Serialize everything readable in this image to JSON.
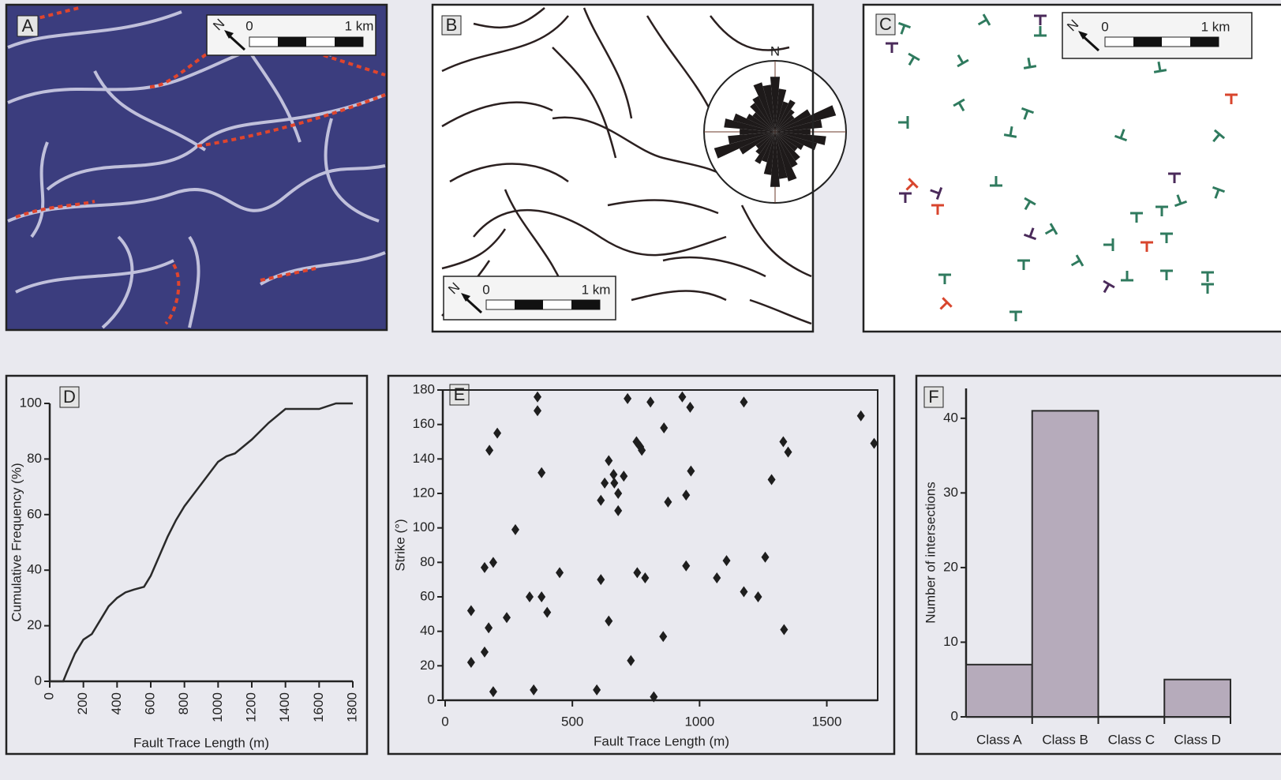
{
  "maps": [
    {
      "label": "A",
      "scale_start": "0",
      "scale_end": "1 km",
      "north": "N"
    },
    {
      "label": "B",
      "scale_start": "0",
      "scale_end": "1 km",
      "north": "N",
      "rose_north": "N"
    },
    {
      "label": "C",
      "scale_start": "0",
      "scale_end": "1 km",
      "north": "N"
    }
  ],
  "chart_data": [
    {
      "type": "line",
      "label": "D",
      "xlabel": "Fault Trace Length (m)",
      "ylabel": "Cumulative Frequency (%)",
      "color": "#2a2a2a",
      "x": [
        0,
        80,
        100,
        150,
        200,
        250,
        300,
        350,
        400,
        450,
        500,
        560,
        600,
        650,
        700,
        750,
        800,
        900,
        1000,
        1050,
        1100,
        1200,
        1300,
        1400,
        1500,
        1600,
        1700,
        1800
      ],
      "values": [
        0,
        0,
        3,
        10,
        15,
        17,
        22,
        27,
        30,
        32,
        33,
        34,
        38,
        45,
        52,
        58,
        63,
        71,
        79,
        81,
        82,
        87,
        93,
        98,
        98,
        98,
        100,
        100
      ],
      "xlim": [
        0,
        1800
      ],
      "ylim": [
        0,
        100
      ],
      "xticks": [
        0,
        200,
        400,
        600,
        800,
        1000,
        1200,
        1400,
        1600,
        1800
      ],
      "yticks": [
        0,
        20,
        40,
        60,
        80,
        100
      ]
    },
    {
      "type": "scatter",
      "label": "E",
      "xlabel": "Fault Trace Length (m)",
      "ylabel": "Strike (°)",
      "color": "#1e1e1e",
      "x": [
        102,
        102,
        155,
        189,
        171,
        155,
        189,
        174,
        205,
        242,
        276,
        332,
        348,
        363,
        363,
        379,
        379,
        401,
        450,
        596,
        612,
        612,
        627,
        643,
        643,
        662,
        665,
        680,
        680,
        702,
        717,
        730,
        752,
        755,
        767,
        773,
        786,
        807,
        820,
        857,
        860,
        876,
        932,
        947,
        947,
        963,
        966,
        1068,
        1106,
        1174,
        1174,
        1230,
        1258,
        1283,
        1329,
        1348,
        1332,
        1634,
        1686
      ],
      "values": [
        22,
        52,
        77,
        80,
        42,
        28,
        5,
        145,
        155,
        48,
        99,
        60,
        6,
        176,
        168,
        132,
        60,
        51,
        74,
        6,
        116,
        70,
        126,
        139,
        46,
        131,
        126,
        120,
        110,
        130,
        175,
        23,
        150,
        74,
        147,
        145,
        71,
        173,
        2,
        37,
        158,
        115,
        176,
        119,
        78,
        170,
        133,
        71,
        81,
        173,
        63,
        60,
        83,
        128,
        150,
        144,
        41,
        165,
        149
      ],
      "xlim": [
        0,
        1700
      ],
      "ylim": [
        0,
        180
      ],
      "xticks": [
        0,
        500,
        1000,
        1500
      ],
      "yticks": [
        0,
        20,
        40,
        60,
        80,
        100,
        120,
        140,
        160,
        180
      ]
    },
    {
      "type": "bar",
      "label": "F",
      "ylabel": "Number of intersections",
      "color": "#b6abbb",
      "categories": [
        "Class A",
        "Class B",
        "Class C",
        "Class D"
      ],
      "values": [
        7,
        41,
        0,
        5
      ],
      "ylim": [
        0,
        44
      ],
      "yticks": [
        0,
        10,
        20,
        30,
        40
      ]
    }
  ]
}
